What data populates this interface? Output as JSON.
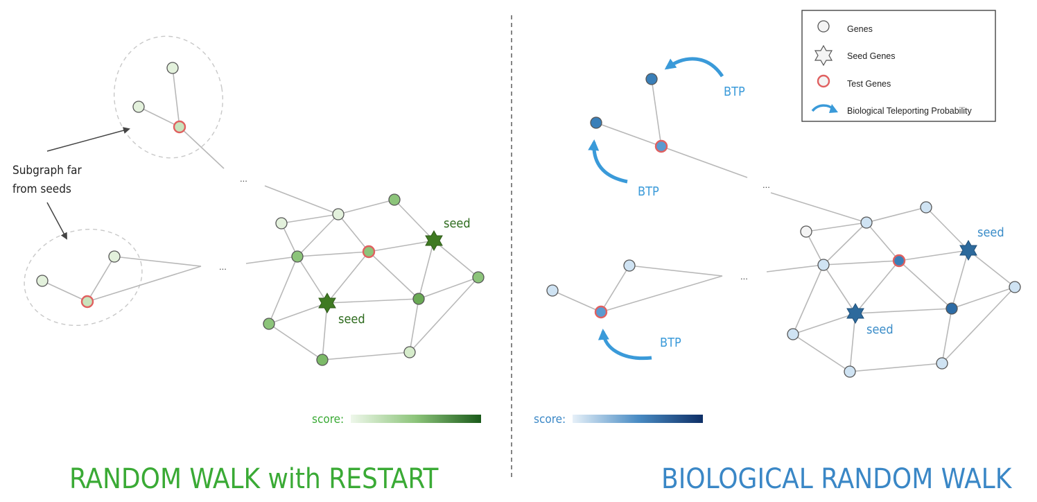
{
  "colors": {
    "green_title": "#3aaa35",
    "blue_title": "#3a87c6",
    "seed_green_text": "#2e6b1e",
    "seed_blue_text": "#3a8cc8",
    "btp_blue": "#3a9ad9",
    "test_ring": "#e06060",
    "edge": "#b8b8b8"
  },
  "left": {
    "title": "RANDOM WALK with RESTART",
    "annotation_line1": "Subgraph far",
    "annotation_line2": "from seeds",
    "seed_label_1": "seed",
    "seed_label_2": "seed",
    "ellipsis_1": "...",
    "ellipsis_2": "...",
    "score_label": "score:"
  },
  "right": {
    "title": "BIOLOGICAL RANDOM WALK",
    "seed_label_1": "seed",
    "seed_label_2": "seed",
    "btp_1": "BTP",
    "btp_2": "BTP",
    "btp_3": "BTP",
    "ellipsis_1": "...",
    "ellipsis_2": "...",
    "score_label": "score:"
  },
  "legend": {
    "genes": "Genes",
    "seed_genes": "Seed Genes",
    "test_genes": "Test Genes",
    "btp": "Biological Teleporting Probability",
    "icons": [
      "gene-circle-icon",
      "seed-star-icon",
      "test-ring-icon",
      "curved-arrow-icon"
    ]
  }
}
